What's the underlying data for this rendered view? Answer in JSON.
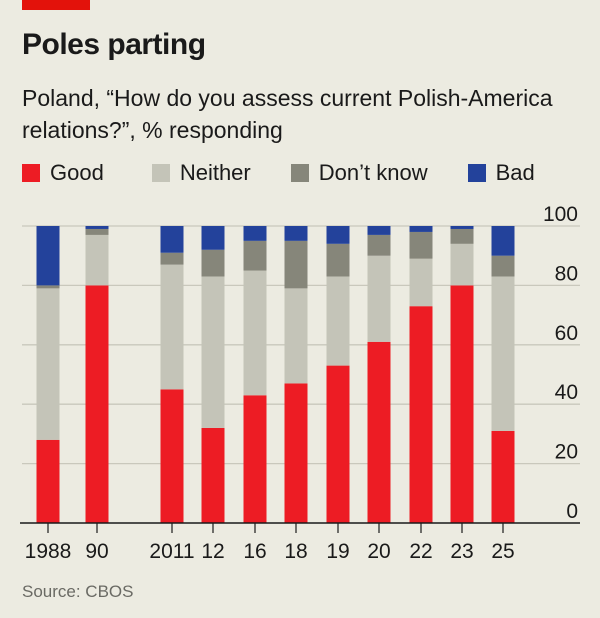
{
  "chart_data": {
    "type": "bar",
    "stacked": true,
    "title": "Poles parting",
    "subtitle": "Poland, “How do you assess current Polish-America relations?”, % responding",
    "source": "Source: CBOS",
    "categories": [
      "1988",
      "90",
      "2011",
      "12",
      "16",
      "18",
      "19",
      "20",
      "22",
      "23",
      "25"
    ],
    "series": [
      {
        "name": "Good",
        "color": "#ed1c24",
        "values": [
          28,
          80,
          45,
          32,
          43,
          47,
          53,
          61,
          73,
          80,
          31
        ]
      },
      {
        "name": "Neither",
        "color": "#c4c4b8",
        "values": [
          51,
          17,
          42,
          51,
          42,
          32,
          30,
          29,
          16,
          14,
          52
        ]
      },
      {
        "name": "Don’t know",
        "color": "#86867a",
        "values": [
          1,
          2,
          4,
          9,
          10,
          16,
          11,
          7,
          9,
          5,
          7
        ]
      },
      {
        "name": "Bad",
        "color": "#23429b",
        "values": [
          20,
          1,
          9,
          8,
          5,
          5,
          6,
          3,
          2,
          1,
          10
        ]
      }
    ],
    "ylim": [
      0,
      100
    ],
    "yticks": [
      "0",
      "20",
      "40",
      "60",
      "80",
      "100"
    ],
    "yaxis_side": "right",
    "grid": true,
    "legend_placement": "top"
  }
}
